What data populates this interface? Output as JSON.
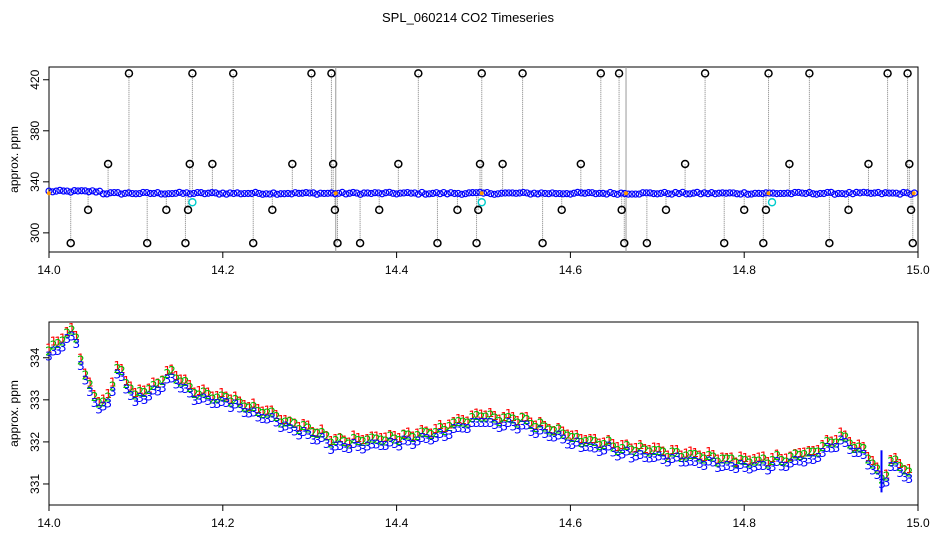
{
  "page_title": "SPL_060214  CO2 Timeseries",
  "chart_data": [
    {
      "type": "scatter",
      "title": "SPL_060214  CO2 Timeseries",
      "ylabel": "approx. ppm",
      "xlabel": "",
      "xlim": [
        14.0,
        15.0
      ],
      "ylim": [
        285,
        430
      ],
      "xticks": [
        "14.0",
        "14.2",
        "14.4",
        "14.6",
        "14.8",
        "15.0"
      ],
      "yticks": [
        "300",
        "340",
        "380",
        "420"
      ],
      "colors": {
        "baseline": "#0000ff",
        "outlier": "#000000",
        "flag": "#00cccc",
        "trace": "#808080",
        "accent": "#ff9900"
      },
      "baseline_ppm": 331,
      "outlier_points": [
        {
          "x": 14.025,
          "y": 292
        },
        {
          "x": 14.045,
          "y": 318
        },
        {
          "x": 14.068,
          "y": 354
        },
        {
          "x": 14.092,
          "y": 425
        },
        {
          "x": 14.113,
          "y": 292
        },
        {
          "x": 14.135,
          "y": 318
        },
        {
          "x": 14.157,
          "y": 292
        },
        {
          "x": 14.16,
          "y": 318
        },
        {
          "x": 14.162,
          "y": 354
        },
        {
          "x": 14.165,
          "y": 425
        },
        {
          "x": 14.188,
          "y": 354
        },
        {
          "x": 14.212,
          "y": 425
        },
        {
          "x": 14.235,
          "y": 292
        },
        {
          "x": 14.257,
          "y": 318
        },
        {
          "x": 14.28,
          "y": 354
        },
        {
          "x": 14.302,
          "y": 425
        },
        {
          "x": 14.325,
          "y": 425
        },
        {
          "x": 14.327,
          "y": 354
        },
        {
          "x": 14.329,
          "y": 318
        },
        {
          "x": 14.332,
          "y": 292
        },
        {
          "x": 14.358,
          "y": 292
        },
        {
          "x": 14.38,
          "y": 318
        },
        {
          "x": 14.402,
          "y": 354
        },
        {
          "x": 14.425,
          "y": 425
        },
        {
          "x": 14.447,
          "y": 292
        },
        {
          "x": 14.47,
          "y": 318
        },
        {
          "x": 14.492,
          "y": 292
        },
        {
          "x": 14.494,
          "y": 318
        },
        {
          "x": 14.496,
          "y": 354
        },
        {
          "x": 14.498,
          "y": 425
        },
        {
          "x": 14.522,
          "y": 354
        },
        {
          "x": 14.545,
          "y": 425
        },
        {
          "x": 14.568,
          "y": 292
        },
        {
          "x": 14.59,
          "y": 318
        },
        {
          "x": 14.612,
          "y": 354
        },
        {
          "x": 14.635,
          "y": 425
        },
        {
          "x": 14.656,
          "y": 425
        },
        {
          "x": 14.659,
          "y": 318
        },
        {
          "x": 14.662,
          "y": 292
        },
        {
          "x": 14.688,
          "y": 292
        },
        {
          "x": 14.71,
          "y": 318
        },
        {
          "x": 14.732,
          "y": 354
        },
        {
          "x": 14.755,
          "y": 425
        },
        {
          "x": 14.777,
          "y": 292
        },
        {
          "x": 14.8,
          "y": 318
        },
        {
          "x": 14.822,
          "y": 292
        },
        {
          "x": 14.825,
          "y": 318
        },
        {
          "x": 14.828,
          "y": 425
        },
        {
          "x": 14.852,
          "y": 354
        },
        {
          "x": 14.875,
          "y": 425
        },
        {
          "x": 14.898,
          "y": 292
        },
        {
          "x": 14.92,
          "y": 318
        },
        {
          "x": 14.943,
          "y": 354
        },
        {
          "x": 14.965,
          "y": 425
        },
        {
          "x": 14.988,
          "y": 425
        },
        {
          "x": 14.99,
          "y": 354
        },
        {
          "x": 14.992,
          "y": 318
        },
        {
          "x": 14.994,
          "y": 292
        }
      ],
      "flag_points": [
        {
          "x": 14.165,
          "y": 324
        },
        {
          "x": 14.498,
          "y": 324
        },
        {
          "x": 14.832,
          "y": 324
        }
      ]
    },
    {
      "type": "scatter",
      "title": "",
      "ylabel": "approx. ppm",
      "xlabel": "",
      "xlim": [
        14.0,
        15.0
      ],
      "ylim": [
        330.5,
        334.85
      ],
      "xticks": [
        "14.0",
        "14.2",
        "14.4",
        "14.6",
        "14.8",
        "15.0"
      ],
      "yticks": [
        "331",
        "332",
        "333",
        "334"
      ],
      "series": [
        {
          "symbol": "1",
          "color": "#ff0000",
          "offset": 0.12
        },
        {
          "symbol": "2",
          "color": "#00bb00",
          "offset": 0.06
        },
        {
          "symbol": "3",
          "color": "#0000ff",
          "offset": -0.08
        }
      ],
      "keypoints": [
        {
          "x": 14.0,
          "y": 334.1
        },
        {
          "x": 14.02,
          "y": 334.45
        },
        {
          "x": 14.03,
          "y": 334.6
        },
        {
          "x": 14.04,
          "y": 333.6
        },
        {
          "x": 14.055,
          "y": 332.9
        },
        {
          "x": 14.065,
          "y": 332.8
        },
        {
          "x": 14.08,
          "y": 333.7
        },
        {
          "x": 14.1,
          "y": 333.0
        },
        {
          "x": 14.12,
          "y": 333.2
        },
        {
          "x": 14.14,
          "y": 333.6
        },
        {
          "x": 14.17,
          "y": 333.1
        },
        {
          "x": 14.2,
          "y": 333.0
        },
        {
          "x": 14.25,
          "y": 332.6
        },
        {
          "x": 14.3,
          "y": 332.2
        },
        {
          "x": 14.33,
          "y": 331.95
        },
        {
          "x": 14.4,
          "y": 332.0
        },
        {
          "x": 14.45,
          "y": 332.2
        },
        {
          "x": 14.5,
          "y": 332.55
        },
        {
          "x": 14.55,
          "y": 332.4
        },
        {
          "x": 14.6,
          "y": 332.05
        },
        {
          "x": 14.66,
          "y": 331.8
        },
        {
          "x": 14.7,
          "y": 331.7
        },
        {
          "x": 14.8,
          "y": 331.45
        },
        {
          "x": 14.85,
          "y": 331.55
        },
        {
          "x": 14.88,
          "y": 331.65
        },
        {
          "x": 14.91,
          "y": 332.05
        },
        {
          "x": 14.94,
          "y": 331.7
        },
        {
          "x": 14.96,
          "y": 331.0
        },
        {
          "x": 14.97,
          "y": 331.5
        },
        {
          "x": 14.99,
          "y": 331.2
        }
      ]
    }
  ]
}
